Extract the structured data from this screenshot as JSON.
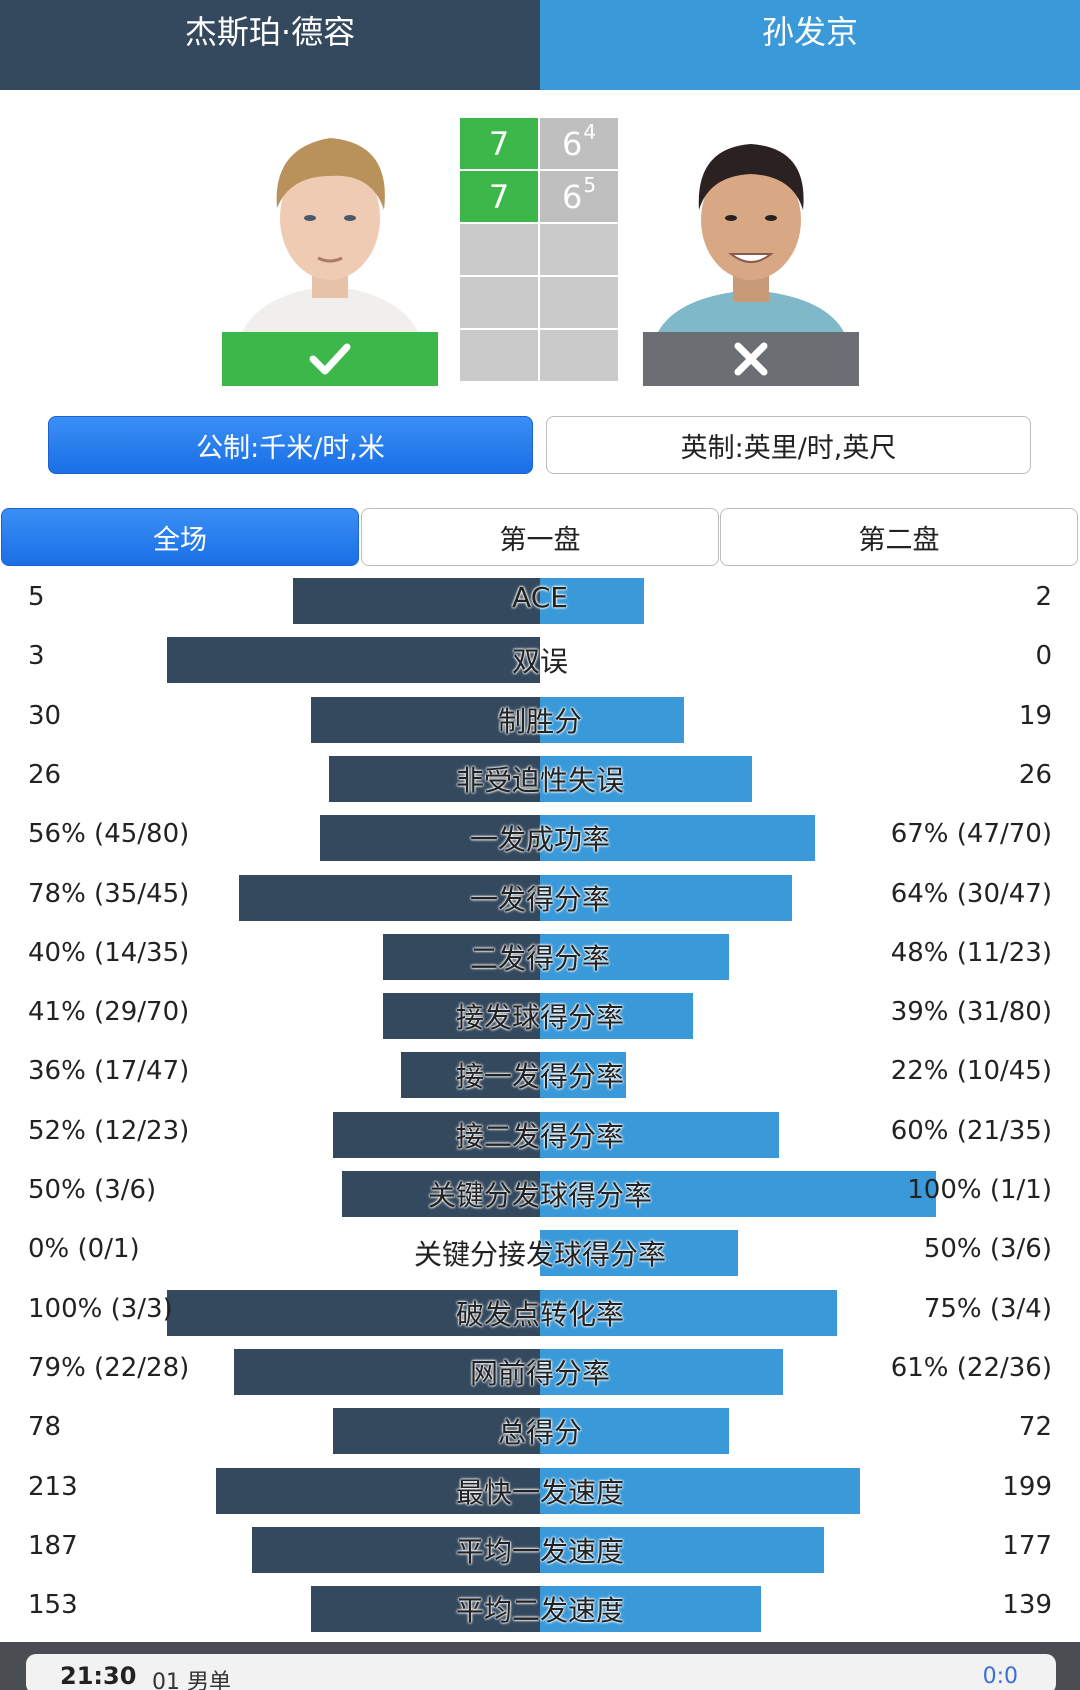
{
  "players": {
    "p1": {
      "name": "杰斯珀·德容",
      "result": "check-icon"
    },
    "p2": {
      "name": "孙发京",
      "result": "x-icon"
    }
  },
  "score": {
    "sets": [
      {
        "p1": "7",
        "p2": "6",
        "p2_tb": "4"
      },
      {
        "p1": "7",
        "p2": "6",
        "p2_tb": "5"
      }
    ]
  },
  "units": {
    "metric": "公制:千米/时,米",
    "imperial": "英制:英里/时,英尺"
  },
  "tabs": [
    "全场",
    "第一盘",
    "第二盘"
  ],
  "stats": [
    {
      "label": "ACE",
      "left": "5",
      "right": "2",
      "lfrac": 0.55,
      "rfrac": 0.23
    },
    {
      "label": "双误",
      "left": "3",
      "right": "0",
      "lfrac": 0.83,
      "rfrac": 0.0
    },
    {
      "label": "制胜分",
      "left": "30",
      "right": "19",
      "lfrac": 0.51,
      "rfrac": 0.32
    },
    {
      "label": "非受迫性失误",
      "left": "26",
      "right": "26",
      "lfrac": 0.47,
      "rfrac": 0.47
    },
    {
      "label": "一发成功率",
      "left": "56% (45/80)",
      "right": "67% (47/70)",
      "lfrac": 0.49,
      "rfrac": 0.61
    },
    {
      "label": "一发得分率",
      "left": "78% (35/45)",
      "right": "64% (30/47)",
      "lfrac": 0.67,
      "rfrac": 0.56
    },
    {
      "label": "二发得分率",
      "left": "40% (14/35)",
      "right": "48% (11/23)",
      "lfrac": 0.35,
      "rfrac": 0.42
    },
    {
      "label": "接发球得分率",
      "left": "41% (29/70)",
      "right": "39% (31/80)",
      "lfrac": 0.35,
      "rfrac": 0.34
    },
    {
      "label": "接一发得分率",
      "left": "36% (17/47)",
      "right": "22% (10/45)",
      "lfrac": 0.31,
      "rfrac": 0.19
    },
    {
      "label": "接二发得分率",
      "left": "52% (12/23)",
      "right": "60% (21/35)",
      "lfrac": 0.46,
      "rfrac": 0.53
    },
    {
      "label": "关键分发球得分率",
      "left": "50% (3/6)",
      "right": "100% (1/1)",
      "lfrac": 0.44,
      "rfrac": 0.88
    },
    {
      "label": "关键分接发球得分率",
      "left": "0% (0/1)",
      "right": "50% (3/6)",
      "lfrac": 0.0,
      "rfrac": 0.44
    },
    {
      "label": "破发点转化率",
      "left": "100% (3/3)",
      "right": "75% (3/4)",
      "lfrac": 0.83,
      "rfrac": 0.66
    },
    {
      "label": "网前得分率",
      "left": "79% (22/28)",
      "right": "61% (22/36)",
      "lfrac": 0.68,
      "rfrac": 0.54
    },
    {
      "label": "总得分",
      "left": "78",
      "right": "72",
      "lfrac": 0.46,
      "rfrac": 0.42
    },
    {
      "label": "最快一发速度",
      "left": "213",
      "right": "199",
      "lfrac": 0.72,
      "rfrac": 0.71
    },
    {
      "label": "平均一发速度",
      "left": "187",
      "right": "177",
      "lfrac": 0.64,
      "rfrac": 0.63
    },
    {
      "label": "平均二发速度",
      "left": "153",
      "right": "139",
      "lfrac": 0.51,
      "rfrac": 0.49
    }
  ],
  "footer": {
    "time": "21:30",
    "event": "01 男单",
    "score": "0:0"
  },
  "colors": {
    "p1": "#34495e",
    "p2": "#3a9ad9",
    "win": "#3cb84a",
    "lose": "#6b6e73",
    "accent": "#1a6fe6"
  }
}
